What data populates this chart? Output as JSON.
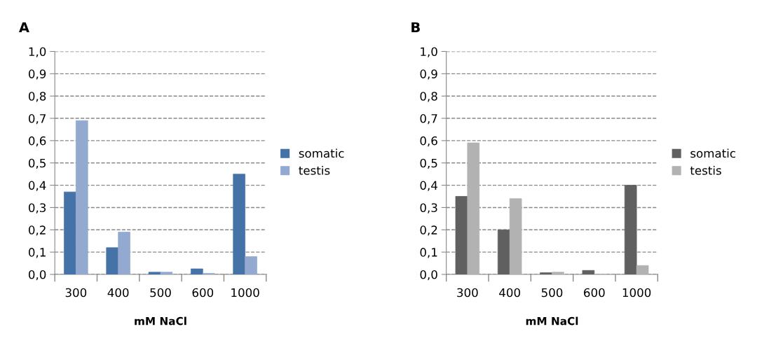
{
  "chart_data": [
    {
      "type": "bar",
      "title": "A",
      "xlabel": "mM NaCl",
      "categories": [
        "300",
        "400",
        "500",
        "600",
        "1000"
      ],
      "series": [
        {
          "name": "somatic",
          "color": "#4572a7",
          "values": [
            0.37,
            0.12,
            0.01,
            0.025,
            0.45
          ]
        },
        {
          "name": "testis",
          "color": "#93a9cf",
          "values": [
            0.69,
            0.19,
            0.01,
            0.005,
            0.08
          ]
        }
      ],
      "ylim": [
        0,
        1
      ],
      "yticks": [
        {
          "value": 0,
          "label": "0,0"
        },
        {
          "value": 0.1,
          "label": "0,1"
        },
        {
          "value": 0.2,
          "label": "0,2"
        },
        {
          "value": 0.3,
          "label": "0,3"
        },
        {
          "value": 0.4,
          "label": "0,4"
        },
        {
          "value": 0.5,
          "label": "0,5"
        },
        {
          "value": 0.6,
          "label": "0,6"
        },
        {
          "value": 0.7,
          "label": "0,7"
        },
        {
          "value": 0.8,
          "label": "0,8"
        },
        {
          "value": 0.9,
          "label": "0,9"
        },
        {
          "value": 1,
          "label": "1,0"
        }
      ],
      "grid": "y",
      "legend": "right"
    },
    {
      "type": "bar",
      "title": "B",
      "xlabel": "mM NaCl",
      "categories": [
        "300",
        "400",
        "500",
        "600",
        "1000"
      ],
      "series": [
        {
          "name": "somatic",
          "color": "#606060",
          "values": [
            0.35,
            0.2,
            0.008,
            0.018,
            0.4
          ]
        },
        {
          "name": "testis",
          "color": "#b2b2b2",
          "values": [
            0.59,
            0.34,
            0.01,
            0.0,
            0.04
          ]
        }
      ],
      "ylim": [
        0,
        1
      ],
      "yticks": [
        {
          "value": 0,
          "label": "0,0"
        },
        {
          "value": 0.1,
          "label": "0,1"
        },
        {
          "value": 0.2,
          "label": "0,2"
        },
        {
          "value": 0.3,
          "label": "0,3"
        },
        {
          "value": 0.4,
          "label": "0,4"
        },
        {
          "value": 0.5,
          "label": "0,5"
        },
        {
          "value": 0.6,
          "label": "0,6"
        },
        {
          "value": 0.7,
          "label": "0,7"
        },
        {
          "value": 0.8,
          "label": "0,8"
        },
        {
          "value": 0.9,
          "label": "0,9"
        },
        {
          "value": 1,
          "label": "1,0"
        }
      ],
      "grid": "y",
      "legend": "right"
    }
  ]
}
